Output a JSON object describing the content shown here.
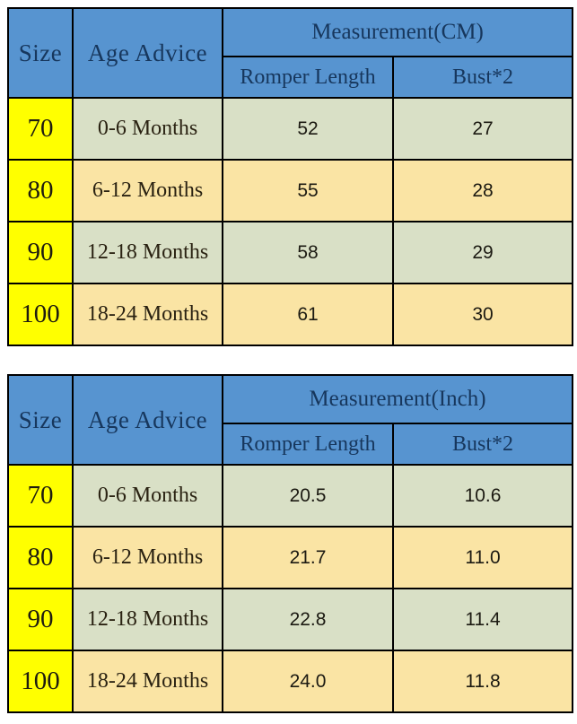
{
  "colors": {
    "header_blue": "#5794D0",
    "header_text_navy": "#17375D",
    "size_column_yellow": "#FFFF00",
    "row_green": "#D9E0C6",
    "row_cream": "#FAE4A4",
    "border_black": "#000000",
    "page_background": "#FFFFFF"
  },
  "tables": [
    {
      "name": "cm",
      "headers": {
        "size": "Size",
        "age": "Age Advice",
        "measurement": "Measurement(CM)",
        "col1": "Romper Length",
        "col2": "Bust*2"
      },
      "rows": [
        {
          "size": "70",
          "age": "0-6 Months",
          "romper_length": "52",
          "bust": "27"
        },
        {
          "size": "80",
          "age": "6-12 Months",
          "romper_length": "55",
          "bust": "28"
        },
        {
          "size": "90",
          "age": "12-18 Months",
          "romper_length": "58",
          "bust": "29"
        },
        {
          "size": "100",
          "age": "18-24 Months",
          "romper_length": "61",
          "bust": "30"
        }
      ]
    },
    {
      "name": "inch",
      "headers": {
        "size": "Size",
        "age": "Age Advice",
        "measurement": "Measurement(Inch)",
        "col1": "Romper Length",
        "col2": "Bust*2"
      },
      "rows": [
        {
          "size": "70",
          "age": "0-6 Months",
          "romper_length": "20.5",
          "bust": "10.6"
        },
        {
          "size": "80",
          "age": "6-12 Months",
          "romper_length": "21.7",
          "bust": "11.0"
        },
        {
          "size": "90",
          "age": "12-18 Months",
          "romper_length": "22.8",
          "bust": "11.4"
        },
        {
          "size": "100",
          "age": "18-24 Months",
          "romper_length": "24.0",
          "bust": "11.8"
        }
      ]
    }
  ],
  "chart_data": [
    {
      "type": "table",
      "title": "Measurement(CM)",
      "columns": [
        "Size",
        "Age Advice",
        "Romper Length",
        "Bust*2"
      ],
      "rows": [
        [
          "70",
          "0-6 Months",
          52,
          27
        ],
        [
          "80",
          "6-12 Months",
          55,
          28
        ],
        [
          "90",
          "12-18 Months",
          58,
          29
        ],
        [
          "100",
          "18-24 Months",
          61,
          30
        ]
      ]
    },
    {
      "type": "table",
      "title": "Measurement(Inch)",
      "columns": [
        "Size",
        "Age Advice",
        "Romper Length",
        "Bust*2"
      ],
      "rows": [
        [
          "70",
          "0-6 Months",
          20.5,
          10.6
        ],
        [
          "80",
          "6-12 Months",
          21.7,
          11.0
        ],
        [
          "90",
          "12-18 Months",
          22.8,
          11.4
        ],
        [
          "100",
          "18-24 Months",
          24.0,
          11.8
        ]
      ]
    }
  ]
}
